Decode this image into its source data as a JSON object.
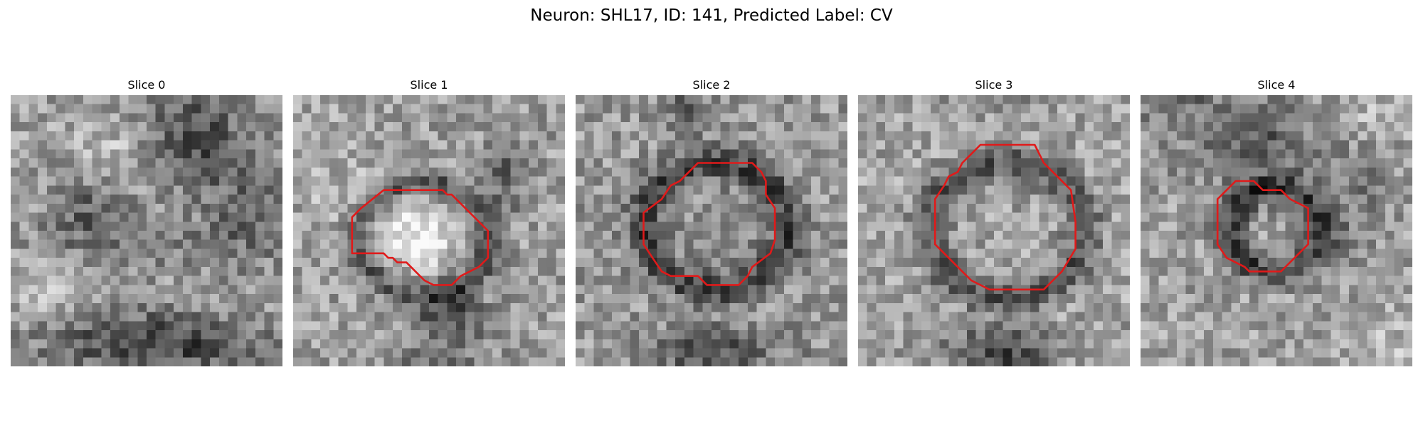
{
  "figure": {
    "title": "Neuron: SHL17, ID: 141, Predicted Label: CV",
    "contour_color": "#e01a1a"
  },
  "slices": [
    {
      "title": "Slice 0",
      "has_contour": false
    },
    {
      "title": "Slice 1",
      "has_contour": true
    },
    {
      "title": "Slice 2",
      "has_contour": true
    },
    {
      "title": "Slice 3",
      "has_contour": true
    },
    {
      "title": "Slice 4",
      "has_contour": true
    }
  ]
}
